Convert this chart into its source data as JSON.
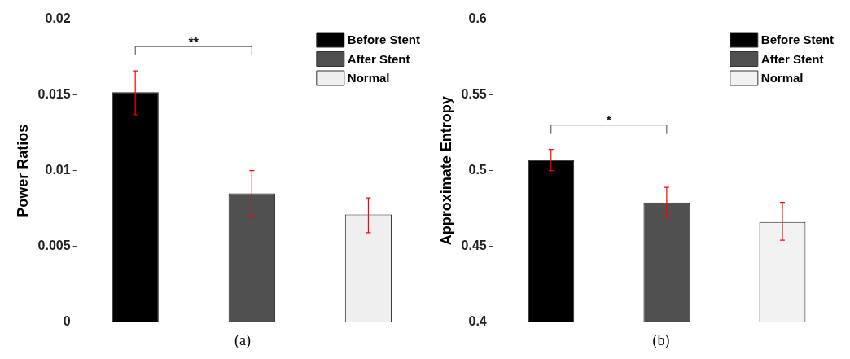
{
  "chart_data": [
    {
      "type": "bar",
      "ylabel": "Power Ratios",
      "categories": [
        null
      ],
      "ylim": [
        0,
        0.02
      ],
      "yticks": [
        0,
        0.005,
        0.01,
        0.015,
        0.02
      ],
      "grid": false,
      "legend": "top right",
      "tick_labels": "y",
      "series": [
        {
          "name": "Before Stent",
          "color": "#000000",
          "values": [
            0.0152
          ],
          "errors": [
            [
              0.0137,
              0.0166
            ]
          ]
        },
        {
          "name": "After Stent",
          "color": "#505050",
          "values": [
            0.0085
          ],
          "errors": [
            [
              0.007,
              0.01
            ]
          ]
        },
        {
          "name": "Normal",
          "color": "#efefef",
          "values": [
            0.0071
          ],
          "errors": [
            [
              0.0059,
              0.0082
            ]
          ]
        }
      ],
      "annotations": [
        "**",
        "(a)"
      ]
    },
    {
      "type": "bar",
      "ylabel": "Approximate Entropy",
      "categories": [
        null
      ],
      "ylim": [
        0.4,
        0.6
      ],
      "yticks": [
        0.4,
        0.45,
        0.5,
        0.55,
        0.6
      ],
      "grid": false,
      "legend": "top right",
      "tick_labels": "y",
      "series": [
        {
          "name": "Before Stent",
          "color": "#000000",
          "values": [
            0.507
          ],
          "errors": [
            [
              0.5,
              0.514
            ]
          ]
        },
        {
          "name": "After Stent",
          "color": "#505050",
          "values": [
            0.479
          ],
          "errors": [
            [
              0.469,
              0.489
            ]
          ]
        },
        {
          "name": "Normal",
          "color": "#f2f2f2",
          "values": [
            0.466
          ],
          "errors": [
            [
              0.454,
              0.479
            ]
          ]
        }
      ],
      "annotations": [
        "*",
        "(b)"
      ]
    }
  ]
}
